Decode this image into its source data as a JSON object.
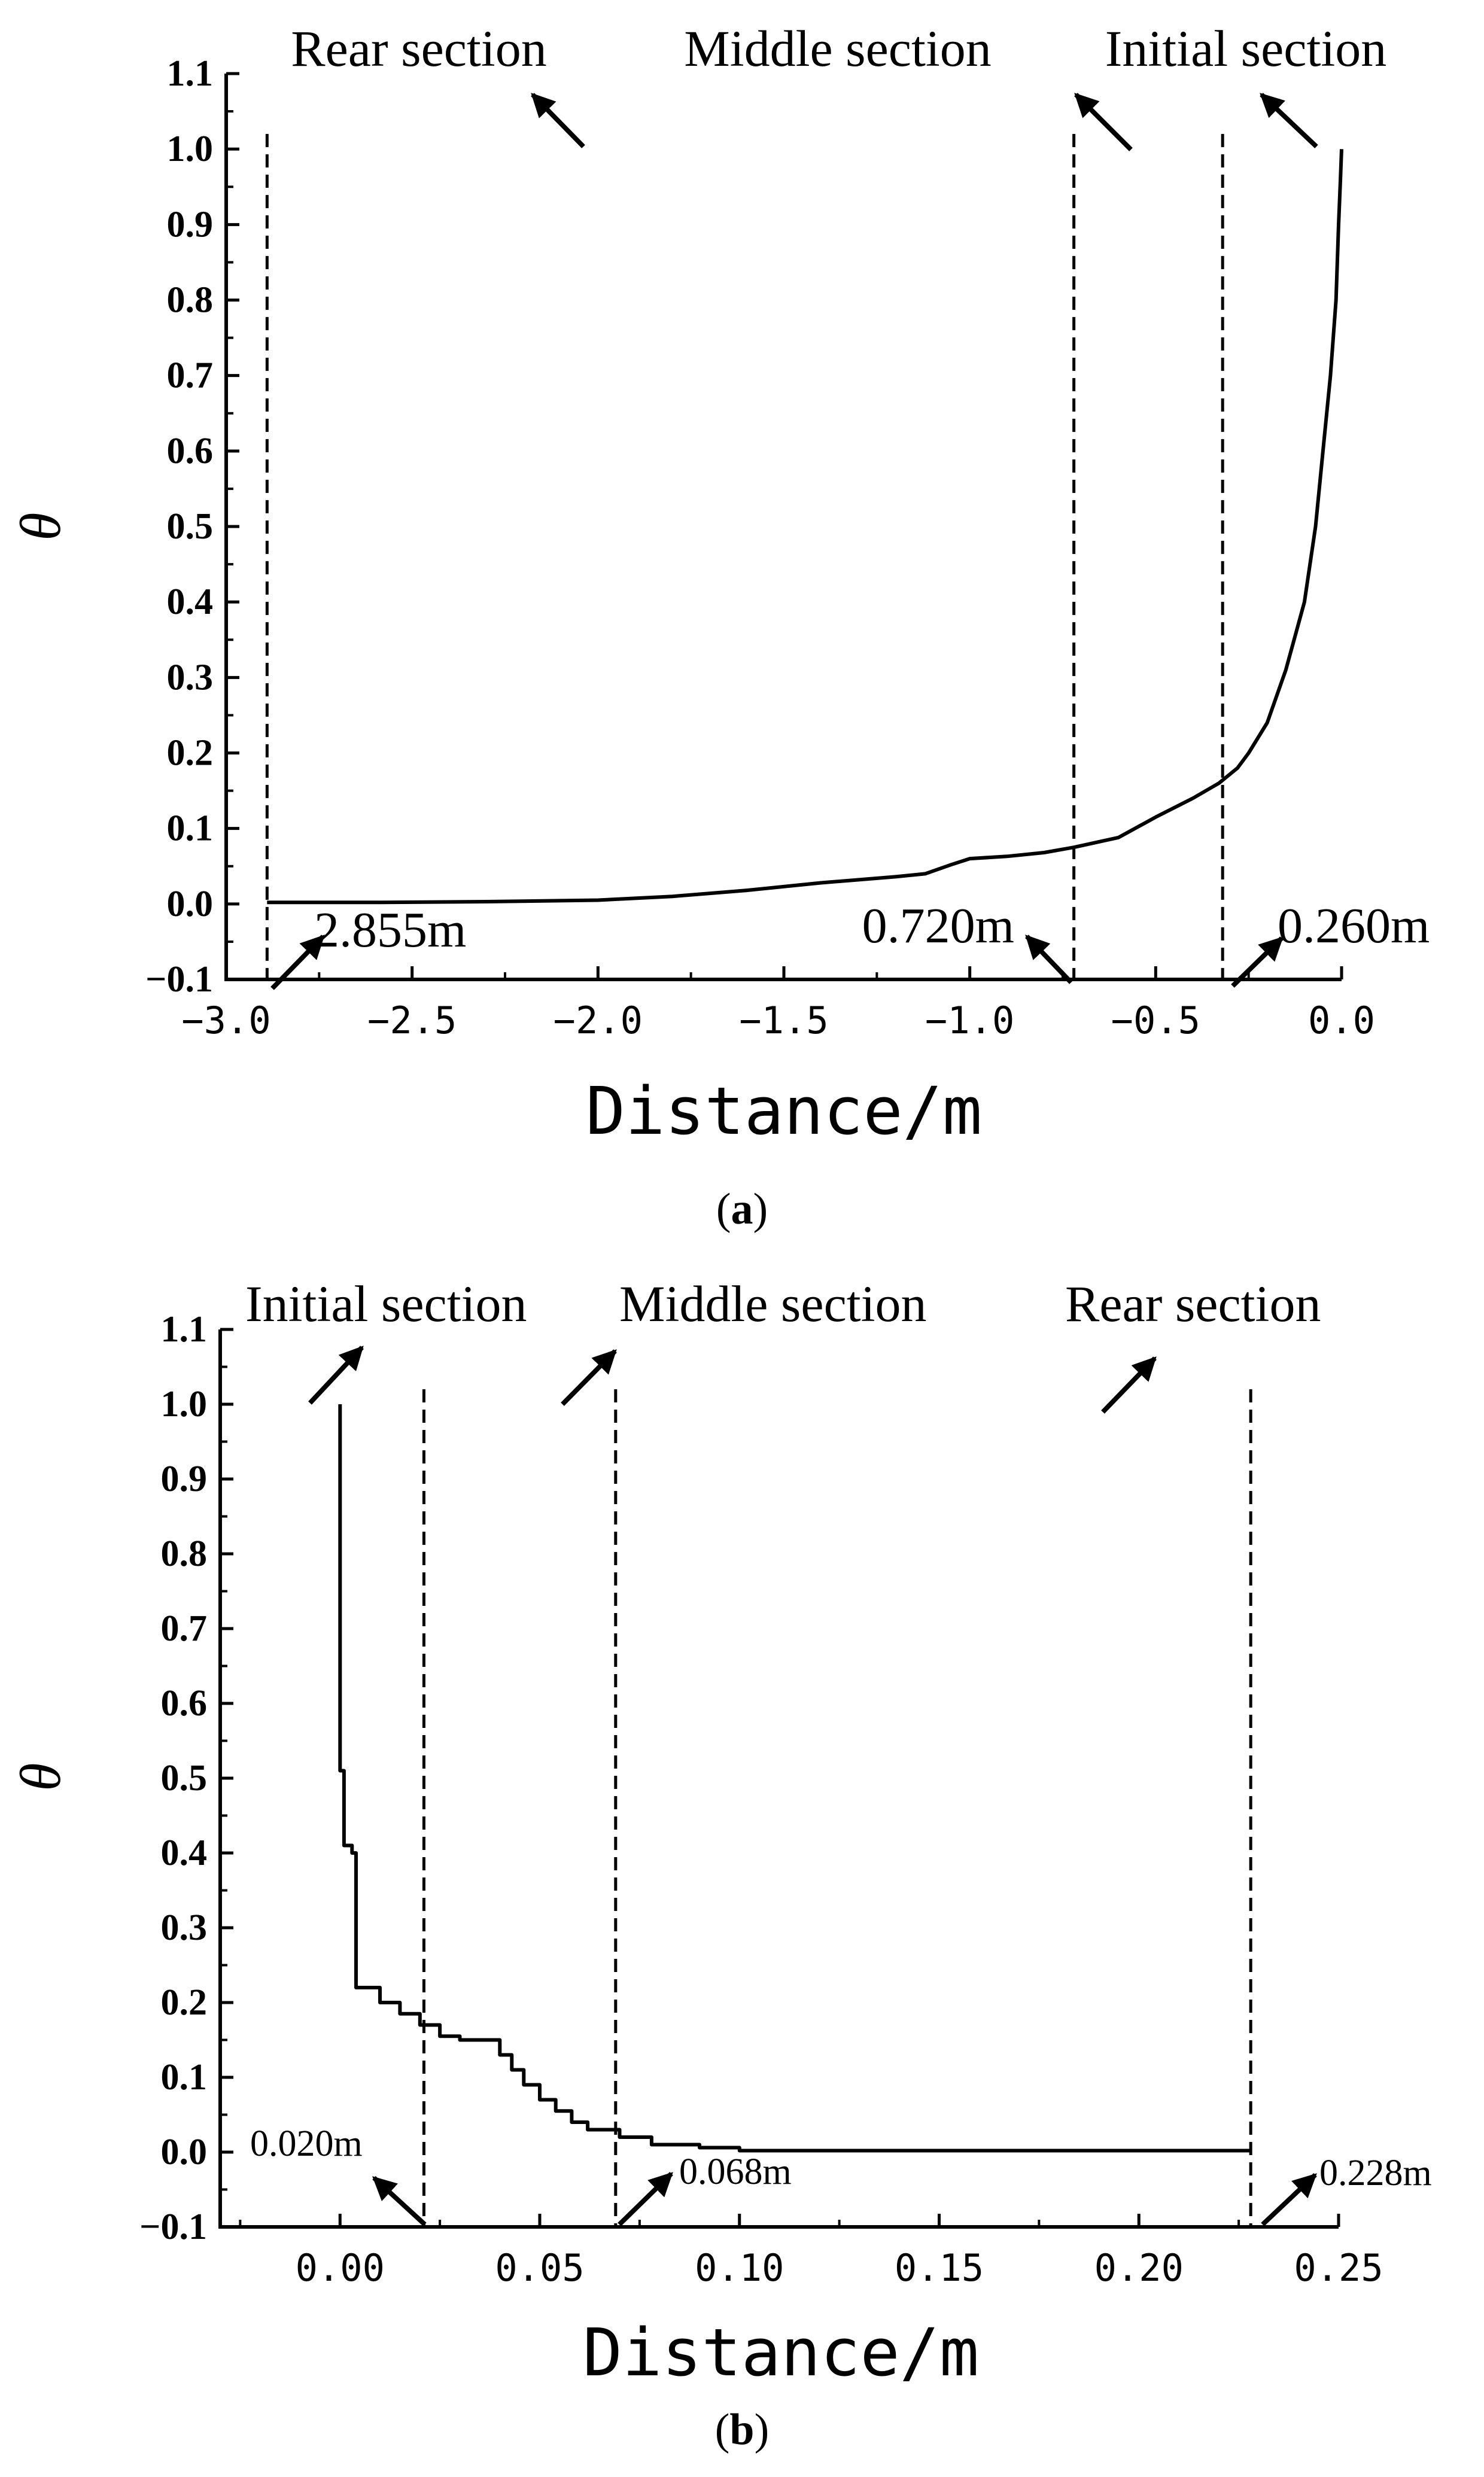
{
  "panels": [
    {
      "id": "a",
      "caption_text": "a",
      "caption_open": "(",
      "caption_close": ")",
      "section_labels": [
        "Rear section",
        "Middle section",
        "Initial section"
      ],
      "annotations": [
        "2.855m",
        "0.720m",
        "0.260m"
      ],
      "chart_data": {
        "type": "line",
        "title": "",
        "xlabel": "Distance/m",
        "ylabel": "θ",
        "xlim": [
          -3.0,
          0.0
        ],
        "ylim": [
          -0.1,
          1.1
        ],
        "xticks": [
          "−3.0",
          "−2.5",
          "−2.0",
          "−1.5",
          "−1.0",
          "−0.5",
          "0.0"
        ],
        "xtick_values": [
          -3.0,
          -2.5,
          -2.0,
          -1.5,
          -1.0,
          -0.5,
          0.0
        ],
        "yticks": [
          "−0.1",
          "0.0",
          "0.1",
          "0.2",
          "0.3",
          "0.4",
          "0.5",
          "0.6",
          "0.7",
          "0.8",
          "0.9",
          "1.0",
          "1.1"
        ],
        "ytick_values": [
          -0.1,
          0.0,
          0.1,
          0.2,
          0.3,
          0.4,
          0.5,
          0.6,
          0.7,
          0.8,
          0.9,
          1.0,
          1.1
        ],
        "grid": false,
        "series": [
          {
            "x": [
              -2.89,
              -2.6,
              -2.3,
              -2.0,
              -1.8,
              -1.6,
              -1.4,
              -1.2,
              -1.12,
              -1.05,
              -1.0,
              -0.9,
              -0.8,
              -0.72,
              -0.6,
              -0.5,
              -0.4,
              -0.33,
              -0.28,
              -0.25,
              -0.2,
              -0.15,
              -0.1,
              -0.07,
              -0.05,
              -0.03,
              -0.015,
              -0.008,
              -0.003,
              0.0
            ],
            "y": [
              0.002,
              0.002,
              0.003,
              0.005,
              0.01,
              0.018,
              0.028,
              0.036,
              0.04,
              0.052,
              0.06,
              0.063,
              0.068,
              0.075,
              0.088,
              0.115,
              0.14,
              0.16,
              0.18,
              0.2,
              0.24,
              0.31,
              0.4,
              0.5,
              0.6,
              0.7,
              0.8,
              0.9,
              0.96,
              1.0
            ]
          }
        ],
        "vlines": [
          -2.89,
          -0.72,
          -0.32
        ]
      }
    },
    {
      "id": "b",
      "caption_text": "b",
      "caption_open": "(",
      "caption_close": ")",
      "section_labels": [
        "Initial section",
        "Middle section",
        "Rear section"
      ],
      "annotations": [
        "0.020m",
        "0.068m",
        "0.228m"
      ],
      "chart_data": {
        "type": "line",
        "title": "",
        "xlabel": "Distance/m",
        "ylabel": "θ",
        "xlim": [
          -0.03,
          0.25
        ],
        "ylim": [
          -0.1,
          1.1
        ],
        "xticks": [
          "0.00",
          "0.05",
          "0.10",
          "0.15",
          "0.20",
          "0.25"
        ],
        "xtick_values": [
          0.0,
          0.05,
          0.1,
          0.15,
          0.2,
          0.25
        ],
        "yticks": [
          "−0.1",
          "0.0",
          "0.1",
          "0.2",
          "0.3",
          "0.4",
          "0.5",
          "0.6",
          "0.7",
          "0.8",
          "0.9",
          "1.0",
          "1.1"
        ],
        "ytick_values": [
          -0.1,
          0.0,
          0.1,
          0.2,
          0.3,
          0.4,
          0.5,
          0.6,
          0.7,
          0.8,
          0.9,
          1.0,
          1.1
        ],
        "grid": false,
        "series": [
          {
            "x": [
              0.0,
              0.0,
              0.001,
              0.001,
              0.003,
              0.003,
              0.004,
              0.004,
              0.01,
              0.01,
              0.015,
              0.015,
              0.02,
              0.02,
              0.025,
              0.025,
              0.03,
              0.03,
              0.04,
              0.04,
              0.043,
              0.043,
              0.046,
              0.046,
              0.05,
              0.05,
              0.054,
              0.054,
              0.058,
              0.058,
              0.062,
              0.062,
              0.07,
              0.07,
              0.078,
              0.078,
              0.09,
              0.09,
              0.1,
              0.1,
              0.228
            ],
            "y": [
              1.0,
              0.51,
              0.51,
              0.41,
              0.41,
              0.4,
              0.4,
              0.22,
              0.22,
              0.2,
              0.2,
              0.185,
              0.185,
              0.17,
              0.17,
              0.155,
              0.155,
              0.15,
              0.15,
              0.13,
              0.13,
              0.11,
              0.11,
              0.09,
              0.09,
              0.07,
              0.07,
              0.055,
              0.055,
              0.04,
              0.04,
              0.03,
              0.03,
              0.02,
              0.02,
              0.01,
              0.01,
              0.006,
              0.006,
              0.002,
              0.002
            ]
          }
        ],
        "vlines": [
          0.021,
          0.069,
          0.228
        ]
      }
    }
  ]
}
